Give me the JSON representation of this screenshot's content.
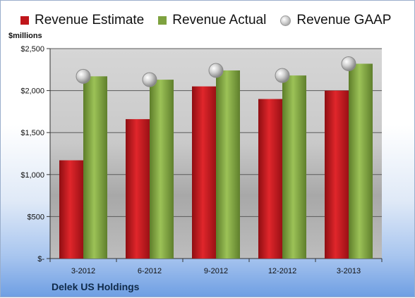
{
  "units_label": "$millions",
  "company": "Delek US Holdings",
  "colors": {
    "estimate": "#c0161b",
    "actual": "#7ea23f",
    "gaap": "#b5b5b5"
  },
  "chart_data": {
    "type": "bar",
    "categories": [
      "3-2012",
      "6-2012",
      "9-2012",
      "12-2012",
      "3-2013"
    ],
    "series": [
      {
        "name": "Revenue Estimate",
        "kind": "bar",
        "values": [
          1170,
          1660,
          2050,
          1900,
          2000
        ]
      },
      {
        "name": "Revenue Actual",
        "kind": "bar",
        "values": [
          2170,
          2130,
          2240,
          2180,
          2320
        ]
      },
      {
        "name": "Revenue GAAP",
        "kind": "marker",
        "values": [
          2170,
          2130,
          2240,
          2180,
          2320
        ]
      }
    ],
    "ylim": [
      0,
      2500
    ],
    "yticks": [
      0,
      500,
      1000,
      1500,
      2000,
      2500
    ],
    "ytick_labels": [
      "$-",
      "$500",
      "$1,000",
      "$1,500",
      "$2,000",
      "$2,500"
    ],
    "grid": true,
    "legend_position": "top"
  }
}
